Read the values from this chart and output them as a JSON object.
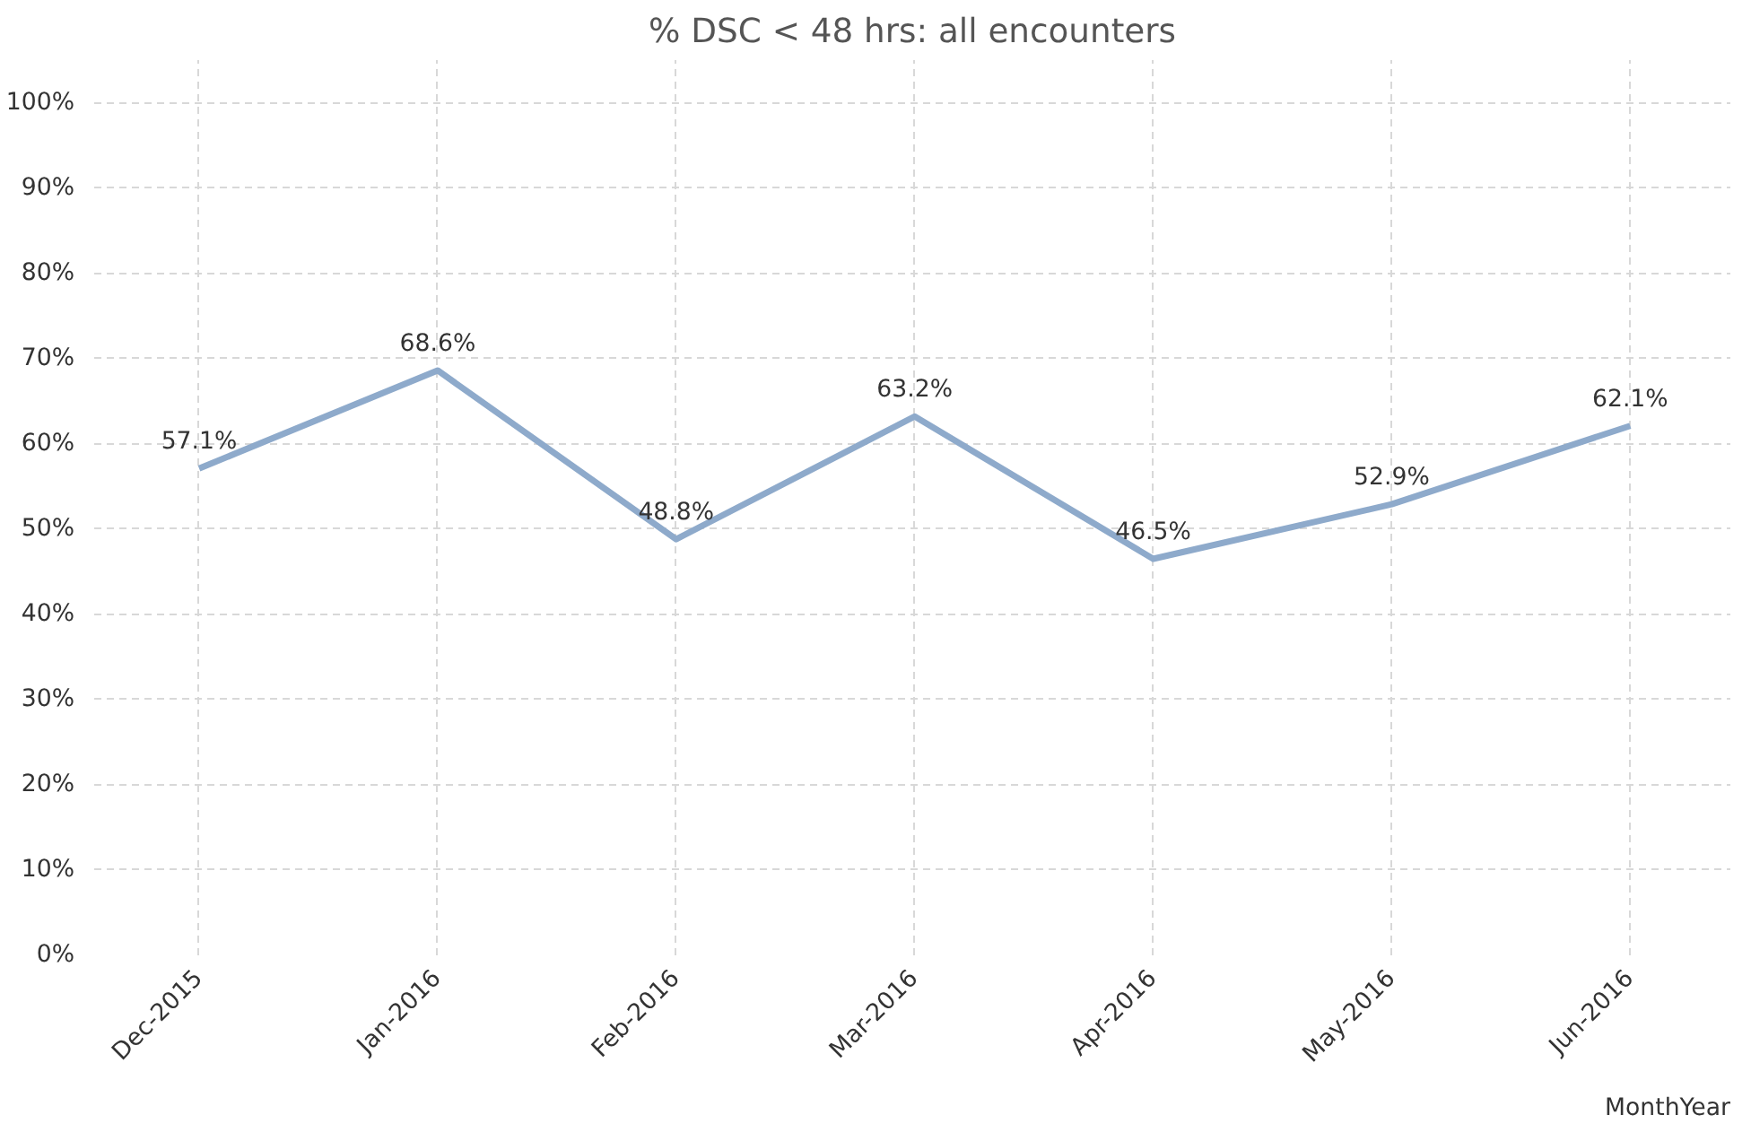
{
  "chart_data": {
    "type": "line",
    "title": "% DSC < 48 hrs: all encounters",
    "xlabel": "MonthYear",
    "categories": [
      "Dec-2015",
      "Jan-2016",
      "Feb-2016",
      "Mar-2016",
      "Apr-2016",
      "May-2016",
      "Jun-2016"
    ],
    "series": [
      {
        "color": "#8eaacb",
        "values": [
          57.1,
          68.6,
          48.8,
          63.2,
          46.5,
          52.9,
          62.1
        ],
        "value_labels": [
          "57.1%",
          "68.6%",
          "48.8%",
          "63.2%",
          "46.5%",
          "52.9%",
          "62.1%"
        ]
      }
    ],
    "ylim": [
      0,
      105
    ],
    "yticks": [
      {
        "value": 0,
        "label": "0%"
      },
      {
        "value": 10,
        "label": "10%"
      },
      {
        "value": 20,
        "label": "20%"
      },
      {
        "value": 30,
        "label": "30%"
      },
      {
        "value": 40,
        "label": "40%"
      },
      {
        "value": 50,
        "label": "50%"
      },
      {
        "value": 60,
        "label": "60%"
      },
      {
        "value": 70,
        "label": "70%"
      },
      {
        "value": 80,
        "label": "80%"
      },
      {
        "value": 90,
        "label": "90%"
      },
      {
        "value": 100,
        "label": "100%"
      }
    ],
    "grid": true,
    "marker": "none",
    "line_style": "solid"
  }
}
